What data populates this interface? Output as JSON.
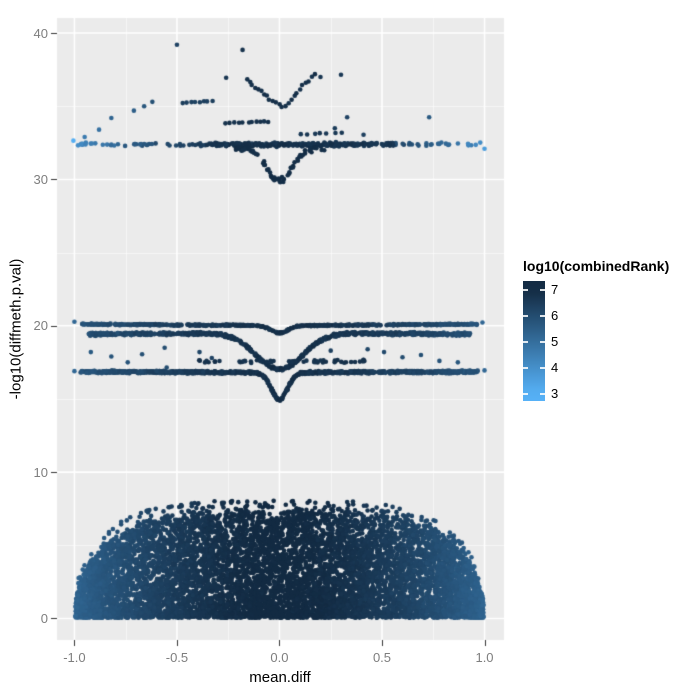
{
  "figure": {
    "background": "#FFFFFF"
  },
  "chart_data": {
    "type": "scatter",
    "title": "",
    "xlabel": "mean.diff",
    "ylabel": "-log10(diffmeth.p.val)",
    "x_ticks": {
      "values": [
        -1.0,
        -0.5,
        0.0,
        0.5,
        1.0
      ],
      "labels": [
        "-1.0",
        "-0.5",
        "0.0",
        "0.5",
        "1.0"
      ]
    },
    "y_ticks": {
      "values": [
        0,
        10,
        20,
        30,
        40
      ],
      "labels": [
        "0",
        "10",
        "20",
        "30",
        "40"
      ]
    },
    "x_minor": [
      -0.75,
      -0.25,
      0.25,
      0.75
    ],
    "y_minor": [
      5,
      15,
      25,
      35
    ],
    "xlim": [
      -1.085,
      1.095
    ],
    "ylim": [
      -1.47,
      41.03
    ],
    "grid": true,
    "panel_bg": "#EBEBEB",
    "grid_major_color": "#FFFFFF",
    "grid_minor_alpha": 0.55,
    "tick_mark_color": "#333333",
    "tick_label_color": "#7E7E7E",
    "point_radius": 2.3,
    "color_scale": {
      "low_value": 3,
      "high_value": 7,
      "low_color_rgb": [
        86,
        177,
        247
      ],
      "high_color_rgb": [
        19,
        43,
        67
      ]
    },
    "legend": {
      "title": "log10(combinedRank)",
      "position": "right",
      "tick_values": [
        7,
        6,
        5,
        4,
        3
      ],
      "tick_labels": [
        "7",
        "6",
        "5",
        "4",
        "3"
      ],
      "bar_value_range": [
        7.35,
        2.73
      ]
    },
    "seed": 20240601,
    "clusters": [
      {
        "kind": "dome",
        "name": "bottom-dome",
        "n": 8500,
        "x_max": 0.995,
        "height": 7.3,
        "edge_pow": 4,
        "y_pow": 1.3,
        "y_base": 0.05,
        "fuzz": 0.06,
        "outlier_frac": 0.015,
        "rank": {
          "base": 7.05,
          "fall": 1.75,
          "fall_pow": 1.7,
          "noise": 0.12
        }
      },
      {
        "kind": "band",
        "name": "band-y16.8",
        "n": 1050,
        "x_range": [
          -0.97,
          0.97
        ],
        "base": 16.8,
        "slope": 0.06,
        "slope_pow": 1,
        "dip": 1.85,
        "dip_width": 0.055,
        "jitter": 0.1,
        "rank": {
          "base": 6.9,
          "fall": 1.15,
          "fall_pow": 1.4,
          "noise": 0.2
        }
      },
      {
        "kind": "band",
        "name": "curved-wing-y17.5-19.5",
        "n": 850,
        "x_range": [
          -0.93,
          0.93
        ],
        "base": 19.53,
        "slope": -0.12,
        "slope_pow": 1,
        "dip": 2.52,
        "dip_width": 0.16,
        "jitter": 0.12,
        "rank": {
          "base": 6.9,
          "fall": 1.05,
          "fall_pow": 1.4,
          "noise": 0.18
        }
      },
      {
        "kind": "band",
        "name": "line-y20",
        "n": 620,
        "x_range": [
          -0.965,
          0.965
        ],
        "base": 20.02,
        "slope": 0.1,
        "slope_pow": 1.4,
        "dip": 0.5,
        "dip_width": 0.06,
        "jitter": 0.055,
        "rank": {
          "base": 6.9,
          "fall": 1.15,
          "fall_pow": 1.4,
          "noise": 0.2
        }
      },
      {
        "kind": "band",
        "name": "scatter-row-y17.6",
        "n": 55,
        "x_range": [
          -0.4,
          0.42
        ],
        "base": 17.58,
        "slope": 0,
        "slope_pow": 1,
        "dip": 0,
        "dip_width": 1,
        "jitter": 0.13,
        "rank": {
          "base": 6.8,
          "fall": 0,
          "fall_pow": 1,
          "noise": 0.15
        }
      },
      {
        "kind": "band",
        "name": "top-band-y32.4-sparse",
        "n": 135,
        "x_range": [
          -0.99,
          1.0
        ],
        "base": 32.35,
        "slope": 0.1,
        "slope_pow": 2,
        "dip": 0,
        "dip_width": 1,
        "jitter": 0.14,
        "rank": {
          "base": 6.75,
          "fall": 2.8,
          "fall_pow": 2.6,
          "noise": 0.3
        }
      },
      {
        "kind": "band",
        "name": "top-band-y32.4-core",
        "n": 210,
        "x_range": [
          -0.36,
          0.56
        ],
        "base": 32.4,
        "slope": 0,
        "slope_pow": 1,
        "dip": 0,
        "dip_width": 1,
        "jitter": 0.17,
        "rank": {
          "base": 6.8,
          "fall": 0.6,
          "fall_pow": 2,
          "noise": 0.2
        }
      },
      {
        "kind": "band",
        "name": "top-funnel-to-y30",
        "n": 75,
        "x_range": [
          -0.22,
          0.22
        ],
        "base": 32.15,
        "slope": 0,
        "slope_pow": 1,
        "dip": 2.2,
        "dip_width": 0.09,
        "jitter": 0.24,
        "rank": {
          "base": 6.9,
          "fall": 0,
          "fall_pow": 1,
          "noise": 0.1
        }
      },
      {
        "kind": "segment",
        "name": "v-arc-left",
        "n": 13,
        "x1": -0.16,
        "y1": 36.75,
        "x2": 0.01,
        "y2": 34.95,
        "jitter": 0.15,
        "rank": 6.85
      },
      {
        "kind": "segment",
        "name": "v-arc-right",
        "n": 11,
        "x1": 0.03,
        "y1": 35.05,
        "x2": 0.17,
        "y2": 37.2,
        "jitter": 0.15,
        "rank": 6.85
      },
      {
        "kind": "segment",
        "name": "streak-left-y35.3",
        "n": 8,
        "x1": -0.47,
        "y1": 35.22,
        "x2": -0.33,
        "y2": 35.38,
        "jitter": 0.05,
        "rank": 6.4
      },
      {
        "kind": "segment",
        "name": "streak-mid-y33.9",
        "n": 11,
        "x1": -0.26,
        "y1": 33.85,
        "x2": -0.05,
        "y2": 33.95,
        "jitter": 0.06,
        "rank": 6.8
      },
      {
        "kind": "segment",
        "name": "streak-right-y33.1",
        "n": 7,
        "x1": 0.1,
        "y1": 33.1,
        "x2": 0.3,
        "y2": 33.2,
        "jitter": 0.07,
        "rank": 6.6
      },
      {
        "kind": "points",
        "name": "mid-singles",
        "items": [
          [
            -1.0,
            20.28,
            5.2
          ],
          [
            0.99,
            20.22,
            5.2
          ],
          [
            -1.0,
            16.9,
            5.2
          ],
          [
            1.0,
            16.95,
            5.2
          ],
          [
            -0.79,
            19.5,
            5.9
          ],
          [
            -0.92,
            18.2,
            5.6
          ],
          [
            -0.82,
            17.9,
            5.8
          ],
          [
            -0.74,
            17.5,
            5.8
          ],
          [
            -0.67,
            18.05,
            5.9
          ],
          [
            -0.56,
            18.5,
            6.0
          ],
          [
            -0.55,
            17.15,
            6.0
          ],
          [
            -0.39,
            18.2,
            6.2
          ],
          [
            -0.33,
            17.8,
            6.3
          ],
          [
            0.25,
            18.3,
            6.4
          ],
          [
            0.43,
            18.4,
            6.2
          ],
          [
            0.51,
            18.2,
            6.1
          ],
          [
            0.6,
            17.85,
            6.0
          ],
          [
            0.69,
            18.0,
            5.9
          ],
          [
            0.78,
            17.6,
            5.8
          ],
          [
            0.87,
            17.5,
            5.7
          ]
        ]
      },
      {
        "kind": "points",
        "name": "top-singles",
        "items": [
          [
            -1.005,
            32.65,
            3.1
          ],
          [
            1.0,
            32.1,
            3.6
          ],
          [
            -0.5,
            39.2,
            6.3
          ],
          [
            -0.18,
            38.85,
            6.8
          ],
          [
            -0.26,
            36.95,
            6.7
          ],
          [
            0.2,
            37.0,
            6.7
          ],
          [
            0.3,
            37.15,
            6.6
          ],
          [
            0.33,
            34.25,
            6.3
          ],
          [
            0.27,
            33.5,
            6.5
          ],
          [
            0.41,
            33.05,
            6.4
          ],
          [
            0.73,
            34.25,
            5.6
          ],
          [
            -0.62,
            35.3,
            5.9
          ],
          [
            -0.66,
            35.0,
            5.7
          ],
          [
            -0.71,
            34.7,
            5.5
          ],
          [
            -0.82,
            34.2,
            5.3
          ],
          [
            -0.88,
            33.4,
            4.9
          ],
          [
            -0.95,
            32.9,
            4.6
          ]
        ]
      }
    ]
  }
}
